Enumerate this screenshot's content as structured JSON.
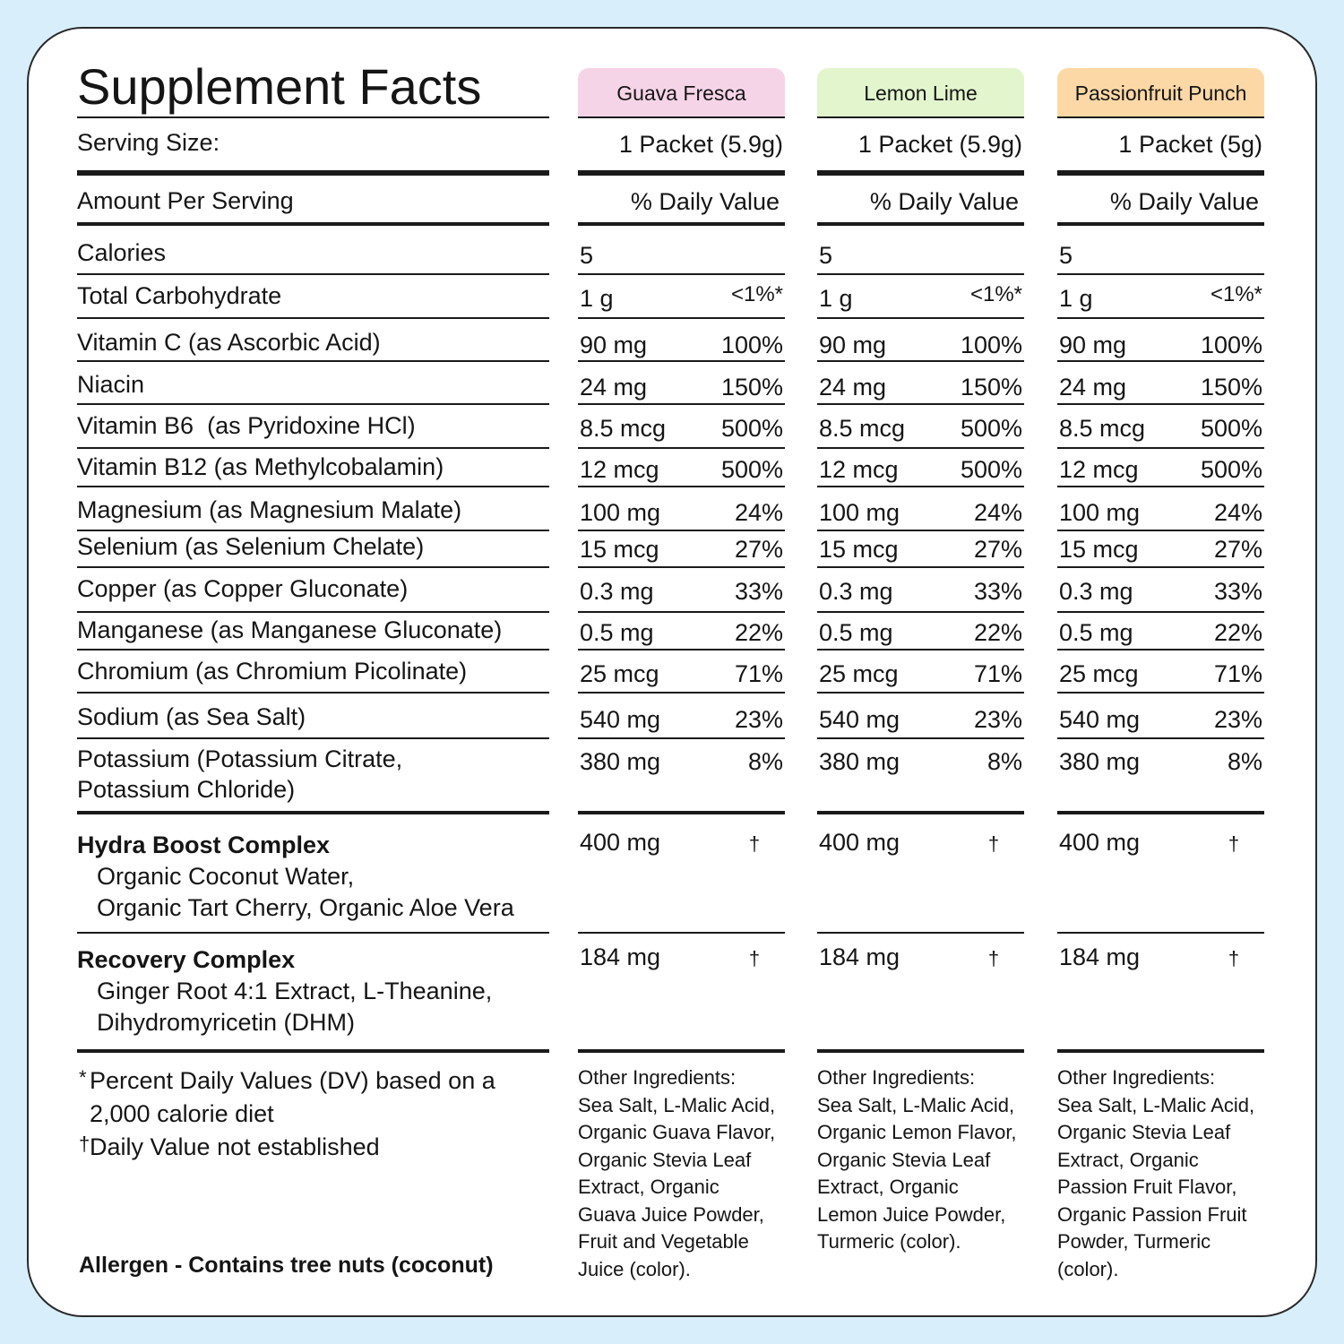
{
  "title": "Supplement Facts",
  "serving_size_label": "Serving Size:",
  "amount_per_serving_label": "Amount Per Serving",
  "rows": [
    {
      "label": [
        "Calories"
      ]
    },
    {
      "label": [
        "Total Carbohydrate"
      ]
    },
    {
      "label": [
        "Vitamin C (as Ascorbic Acid)"
      ]
    },
    {
      "label": [
        "Niacin"
      ]
    },
    {
      "label": [
        "Vitamin B6  (as Pyridoxine HCl)"
      ]
    },
    {
      "label": [
        "Vitamin B12 (as Methylcobalamin)"
      ]
    },
    {
      "label": [
        "Magnesium (as Magnesium Malate)"
      ]
    },
    {
      "label": [
        "Selenium (as Selenium Chelate)"
      ]
    },
    {
      "label": [
        "Copper (as Copper Gluconate)"
      ]
    },
    {
      "label": [
        "Manganese (as Manganese Gluconate)"
      ]
    },
    {
      "label": [
        "Chromium (as Chromium Picolinate)"
      ]
    },
    {
      "label": [
        "Sodium (as Sea Salt)"
      ]
    },
    {
      "label": [
        "Potassium (Potassium Citrate,",
        "Potassium Chloride)"
      ]
    }
  ],
  "complexes": [
    {
      "name": "Hydra Boost Complex",
      "ingredients": [
        "Organic Coconut Water,",
        "Organic Tart Cherry, Organic Aloe Vera"
      ]
    },
    {
      "name": "Recovery Complex",
      "ingredients": [
        "Ginger Root 4:1 Extract, L-Theanine,",
        "Dihydromyricetin (DHM)"
      ]
    }
  ],
  "columns": [
    {
      "flavor": "Guava Fresca",
      "color": "#f6d4e8",
      "serving_size": "1 Packet (5.9g)",
      "daily_value_header": "% Daily Value",
      "amounts": [
        [
          "5"
        ],
        [
          "1 g",
          "<1%*"
        ],
        [
          "90 mg",
          "100%"
        ],
        [
          "24 mg",
          "150%"
        ],
        [
          "8.5 mcg",
          "500%"
        ],
        [
          "12 mcg",
          "500%"
        ],
        [
          "100 mg",
          "24%"
        ],
        [
          "15 mcg",
          "27%"
        ],
        [
          "0.3 mg",
          "33%"
        ],
        [
          "0.5 mg",
          "22%"
        ],
        [
          "25 mcg",
          "71%"
        ],
        [
          "540 mg",
          "23%"
        ],
        [
          "380 mg",
          "8%"
        ]
      ],
      "complexes": [
        [
          "400 mg",
          "†"
        ],
        [
          "184 mg",
          "†"
        ]
      ],
      "other_ingredients_title": "Other Ingredients:",
      "other_ingredients": [
        "Sea Salt, L-Malic Acid,",
        "Organic Guava Flavor,",
        "Organic Stevia Leaf",
        "Extract, Organic",
        "Guava Juice Powder,",
        "Fruit and Vegetable",
        "Juice (color)."
      ]
    },
    {
      "flavor": "Lemon Lime",
      "color": "#e2f5cd",
      "serving_size": "1 Packet (5.9g)",
      "daily_value_header": "% Daily Value",
      "amounts": [
        [
          "5"
        ],
        [
          "1 g",
          "<1%*"
        ],
        [
          "90 mg",
          "100%"
        ],
        [
          "24 mg",
          "150%"
        ],
        [
          "8.5 mcg",
          "500%"
        ],
        [
          "12 mcg",
          "500%"
        ],
        [
          "100 mg",
          "24%"
        ],
        [
          "15 mcg",
          "27%"
        ],
        [
          "0.3 mg",
          "33%"
        ],
        [
          "0.5 mg",
          "22%"
        ],
        [
          "25 mcg",
          "71%"
        ],
        [
          "540 mg",
          "23%"
        ],
        [
          "380 mg",
          "8%"
        ]
      ],
      "complexes": [
        [
          "400 mg",
          "†"
        ],
        [
          "184 mg",
          "†"
        ]
      ],
      "other_ingredients_title": "Other Ingredients:",
      "other_ingredients": [
        "Sea Salt, L-Malic Acid,",
        "Organic Lemon Flavor,",
        "Organic Stevia Leaf",
        "Extract, Organic",
        "Lemon Juice Powder,",
        "Turmeric (color)."
      ]
    },
    {
      "flavor": "Passionfruit Punch",
      "color": "#fbd8a5",
      "serving_size": "1 Packet (5g)",
      "daily_value_header": "% Daily Value",
      "amounts": [
        [
          "5"
        ],
        [
          "1 g",
          "<1%*"
        ],
        [
          "90 mg",
          "100%"
        ],
        [
          "24 mg",
          "150%"
        ],
        [
          "8.5 mcg",
          "500%"
        ],
        [
          "12 mcg",
          "500%"
        ],
        [
          "100 mg",
          "24%"
        ],
        [
          "15 mcg",
          "27%"
        ],
        [
          "0.3 mg",
          "33%"
        ],
        [
          "0.5 mg",
          "22%"
        ],
        [
          "25 mcg",
          "71%"
        ],
        [
          "540 mg",
          "23%"
        ],
        [
          "380 mg",
          "8%"
        ]
      ],
      "complexes": [
        [
          "400 mg",
          "†"
        ],
        [
          "184 mg",
          "†"
        ]
      ],
      "other_ingredients_title": "Other Ingredients:",
      "other_ingredients": [
        "Sea Salt, L-Malic Acid,",
        "Organic Stevia Leaf",
        "Extract, Organic",
        "Passion Fruit Flavor,",
        "Organic Passion Fruit",
        "Powder, Turmeric",
        "(color)."
      ]
    }
  ],
  "footnotes": [
    {
      "symbol": "*",
      "lines": [
        "Percent Daily Values (DV) based on a",
        "2,000 calorie diet"
      ]
    },
    {
      "symbol": "†",
      "lines": [
        "Daily Value not established"
      ]
    }
  ],
  "allergen": "Allergen - Contains tree nuts (coconut)"
}
